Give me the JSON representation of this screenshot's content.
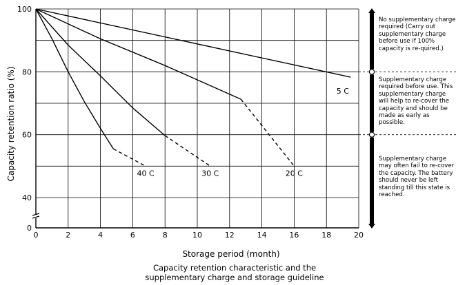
{
  "chart_data": {
    "type": "line",
    "xlabel": "Storage period (month)",
    "ylabel": "Capacity retention ratio (%)",
    "xlim": [
      0,
      20
    ],
    "ylim": [
      0,
      100
    ],
    "y_axis_break": true,
    "xticks": [
      0,
      2,
      4,
      6,
      8,
      10,
      12,
      14,
      16,
      18,
      20
    ],
    "xtick_labels": [
      "0",
      "2",
      "4",
      "6",
      "8",
      "10",
      "12",
      "14",
      "16",
      "18",
      "20"
    ],
    "yticks": [
      0,
      40,
      60,
      80,
      100
    ],
    "ytick_labels": [
      "0",
      "40",
      "60",
      "80",
      "100"
    ],
    "grid": true,
    "series": [
      {
        "name": "5 C",
        "solid": [
          [
            0,
            100
          ],
          [
            19.5,
            78.3
          ]
        ],
        "dashed": [],
        "color": "#000000"
      },
      {
        "name": "20 C",
        "solid": [
          [
            0,
            100
          ],
          [
            4,
            90.5
          ],
          [
            8,
            82.0
          ],
          [
            12.7,
            71.3
          ]
        ],
        "dashed": [
          [
            12.7,
            71.3
          ],
          [
            16,
            50
          ]
        ],
        "color": "#000000"
      },
      {
        "name": "30 C",
        "solid": [
          [
            0,
            100
          ],
          [
            2,
            88.5
          ],
          [
            4,
            78.7
          ],
          [
            6,
            68.5
          ],
          [
            8,
            59.7
          ]
        ],
        "dashed": [
          [
            8,
            59.7
          ],
          [
            10.8,
            50
          ]
        ],
        "color": "#000000"
      },
      {
        "name": "40 C",
        "solid": [
          [
            0,
            100
          ],
          [
            1,
            90.5
          ],
          [
            2,
            80.0
          ],
          [
            3,
            70.5
          ],
          [
            4,
            62.0
          ],
          [
            4.8,
            55.5
          ]
        ],
        "dashed": [
          [
            4.8,
            55.5
          ],
          [
            6.8,
            50
          ]
        ],
        "color": "#000000"
      }
    ],
    "guide_zones": [
      {
        "range": [
          80,
          100
        ],
        "text": "No supplementary charge required (Carry out supplementary charge before use if 100% capacity is re-quired.)"
      },
      {
        "range": [
          60,
          80
        ],
        "text": "Supplementary charge required before use. This supplementary charge will help to re-cover the capacity and should be made as early as possible."
      },
      {
        "range": [
          0,
          60
        ],
        "text": "Supplementary charge may often fail to re-cover the capacity. The battery should never be left standing till this state is reached."
      }
    ],
    "caption_lines": [
      "Capacity retention characteristic and the",
      "supplementary charge and storage guideline"
    ]
  }
}
